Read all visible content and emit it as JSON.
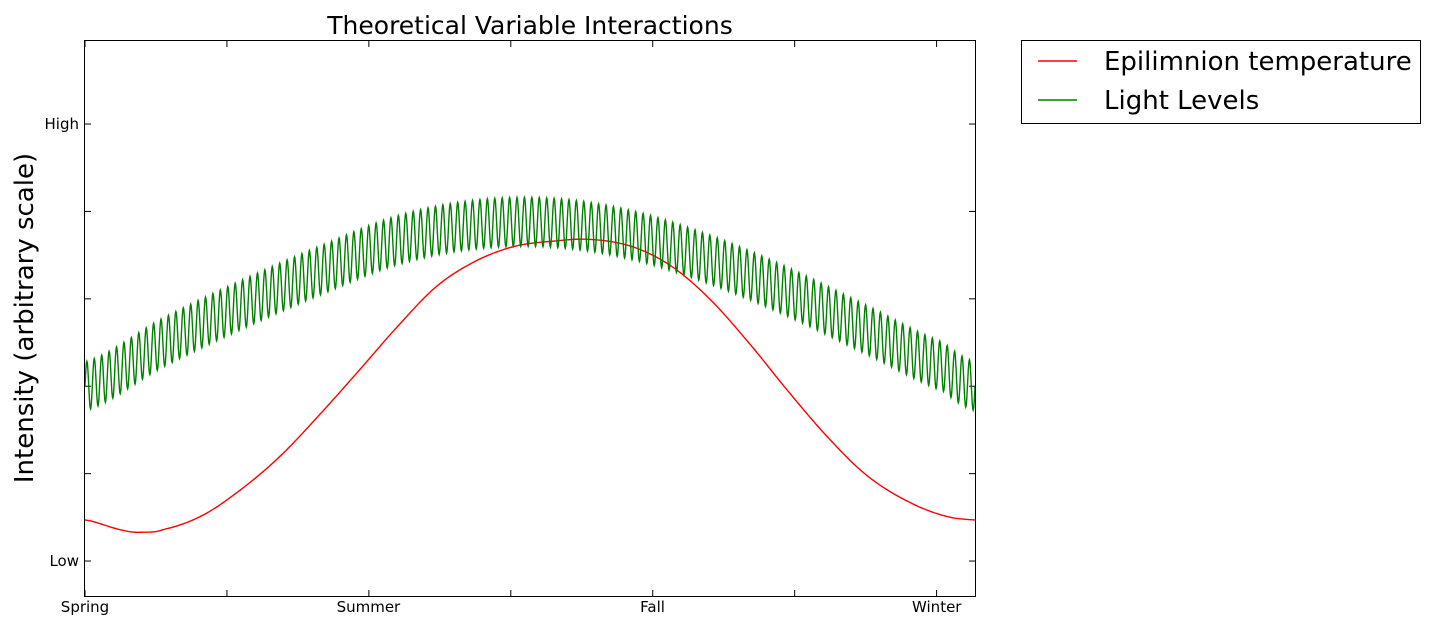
{
  "chart_data": {
    "type": "line",
    "title": "Theoretical Variable Interactions",
    "xlabel": "",
    "ylabel": "Intensity (arbitrary scale)",
    "xlim": [
      0,
      1.14
    ],
    "ylim": [
      -0.4,
      5.95
    ],
    "x_ticks": [
      {
        "value": 0.0,
        "label": "Spring"
      },
      {
        "value": 0.363,
        "label": "Summer"
      },
      {
        "value": 0.727,
        "label": "Fall"
      },
      {
        "value": 1.091,
        "label": "Winter"
      }
    ],
    "y_ticks": [
      {
        "value": 0.0,
        "label": "Low"
      },
      {
        "value": 5.0,
        "label": "High"
      }
    ],
    "legend_position": "outside-top-right",
    "series": [
      {
        "name": "Epilimnion temperature",
        "color": "#ff0000",
        "x": [
          0.0,
          0.05,
          0.075,
          0.1,
          0.15,
          0.2,
          0.25,
          0.3,
          0.35,
          0.4,
          0.45,
          0.5,
          0.55,
          0.6,
          0.647,
          0.7,
          0.75,
          0.8,
          0.85,
          0.9,
          0.95,
          1.0,
          1.05,
          1.1,
          1.14
        ],
        "values": [
          0.47,
          0.35,
          0.33,
          0.36,
          0.52,
          0.82,
          1.2,
          1.67,
          2.17,
          2.68,
          3.14,
          3.43,
          3.6,
          3.66,
          3.68,
          3.6,
          3.38,
          3.0,
          2.5,
          1.95,
          1.43,
          0.99,
          0.7,
          0.52,
          0.47
        ]
      },
      {
        "name": "Light Levels",
        "color": "#008000",
        "x": [
          0.0,
          0.1,
          0.2,
          0.3,
          0.4,
          0.5,
          0.6,
          0.7,
          0.8,
          0.9,
          1.0,
          1.1,
          1.14
        ],
        "values": [
          2.0,
          2.5,
          2.93,
          3.32,
          3.67,
          3.85,
          3.87,
          3.73,
          3.45,
          3.08,
          2.65,
          2.22,
          2.0
        ],
        "oscillation_amplitude": 0.28,
        "oscillation_cycles": 120
      }
    ]
  }
}
